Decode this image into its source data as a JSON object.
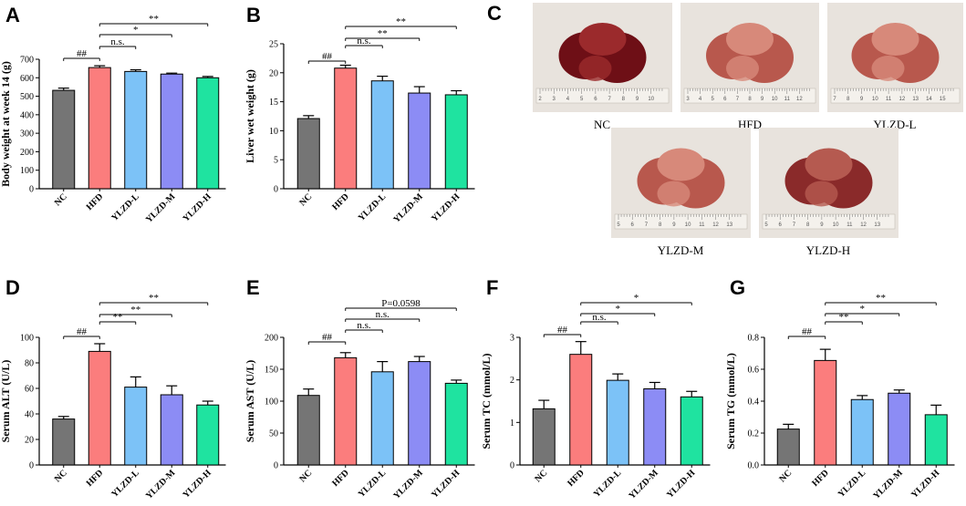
{
  "colors": {
    "NC": "#757575",
    "HFD": "#fb7d7d",
    "YLZD-L": "#7cc2f7",
    "YLZD-M": "#8c8cf5",
    "YLZD-H": "#1fe3a0",
    "axis": "#000000",
    "photo_bg": "#e8e3dd",
    "liver_dark": "#7a1218",
    "liver_light": "#c46a5c"
  },
  "panel_letters": [
    "A",
    "B",
    "C",
    "D",
    "E",
    "F",
    "G"
  ],
  "photos": [
    {
      "caption": "NC",
      "ruler_numbers": [
        "2",
        "3",
        "4",
        "5",
        "6",
        "7",
        "8",
        "9",
        "10"
      ],
      "tone": "dark"
    },
    {
      "caption": "HFD",
      "ruler_numbers": [
        "3",
        "4",
        "5",
        "6",
        "7",
        "8",
        "9",
        "10",
        "11",
        "12"
      ],
      "tone": "light"
    },
    {
      "caption": "YLZD-L",
      "ruler_numbers": [
        "7",
        "8",
        "9",
        "10",
        "11",
        "12",
        "13",
        "14",
        "15"
      ],
      "tone": "light"
    },
    {
      "caption": "YLZD-M",
      "ruler_numbers": [
        "5",
        "6",
        "7",
        "8",
        "9",
        "10",
        "11",
        "12",
        "13"
      ],
      "tone": "light"
    },
    {
      "caption": "YLZD-H",
      "ruler_numbers": [
        "5",
        "6",
        "7",
        "8",
        "9",
        "10",
        "11",
        "12",
        "13"
      ],
      "tone": "medium"
    }
  ],
  "chart_data": [
    {
      "panel": "A",
      "type": "bar",
      "categories": [
        "NC",
        "HFD",
        "YLZD-L",
        "YLZD-M",
        "YLZD-H"
      ],
      "values": [
        532,
        655,
        634,
        620,
        600
      ],
      "errors": [
        12,
        10,
        9,
        5,
        7
      ],
      "ylabel": "Body weight at week 14 (g)",
      "ylim": [
        0,
        700
      ],
      "yticks": [
        0,
        100,
        200,
        300,
        400,
        500,
        600,
        700
      ],
      "yticklabels": [
        "0",
        "100",
        "200",
        "300",
        "400",
        "500",
        "600",
        "700"
      ],
      "comparisons": [
        {
          "from": 0,
          "to": 1,
          "label": "##"
        },
        {
          "from": 1,
          "to": 2,
          "label": "n.s."
        },
        {
          "from": 1,
          "to": 3,
          "label": "*"
        },
        {
          "from": 1,
          "to": 4,
          "label": "**"
        }
      ]
    },
    {
      "panel": "B",
      "type": "bar",
      "categories": [
        "NC",
        "HFD",
        "YLZD-L",
        "YLZD-M",
        "YLZD-H"
      ],
      "values": [
        12.1,
        20.8,
        18.6,
        16.5,
        16.2
      ],
      "errors": [
        0.5,
        0.5,
        0.8,
        1.1,
        0.7
      ],
      "ylabel": "Liver wet weight (g)",
      "ylim": [
        0,
        25
      ],
      "yticks": [
        0,
        5,
        10,
        15,
        20,
        25
      ],
      "yticklabels": [
        "0",
        "5",
        "10",
        "15",
        "20",
        "25"
      ],
      "comparisons": [
        {
          "from": 0,
          "to": 1,
          "label": "##"
        },
        {
          "from": 1,
          "to": 2,
          "label": "n.s."
        },
        {
          "from": 1,
          "to": 3,
          "label": "**"
        },
        {
          "from": 1,
          "to": 4,
          "label": "**"
        }
      ]
    },
    {
      "panel": "D",
      "type": "bar",
      "categories": [
        "NC",
        "HFD",
        "YLZD-L",
        "YLZD-M",
        "YLZD-H"
      ],
      "values": [
        36,
        89,
        61,
        55,
        47
      ],
      "errors": [
        2,
        6,
        8,
        7,
        3
      ],
      "ylabel": "Serum ALT (U/L)",
      "ylim": [
        0,
        100
      ],
      "yticks": [
        0,
        20,
        40,
        60,
        80,
        100
      ],
      "yticklabels": [
        "0",
        "20",
        "40",
        "60",
        "80",
        "100"
      ],
      "comparisons": [
        {
          "from": 0,
          "to": 1,
          "label": "##"
        },
        {
          "from": 1,
          "to": 2,
          "label": "**"
        },
        {
          "from": 1,
          "to": 3,
          "label": "**"
        },
        {
          "from": 1,
          "to": 4,
          "label": "**"
        }
      ]
    },
    {
      "panel": "E",
      "type": "bar",
      "categories": [
        "NC",
        "HFD",
        "YLZD-L",
        "YLZD-M",
        "YLZD-H"
      ],
      "values": [
        109,
        168,
        146,
        162,
        128
      ],
      "errors": [
        10,
        8,
        16,
        8,
        5
      ],
      "ylabel": "Serum AST (U/L)",
      "ylim": [
        0,
        200
      ],
      "yticks": [
        0,
        50,
        100,
        150,
        200
      ],
      "yticklabels": [
        "0",
        "50",
        "100",
        "150",
        "200"
      ],
      "comparisons": [
        {
          "from": 0,
          "to": 1,
          "label": "##"
        },
        {
          "from": 1,
          "to": 2,
          "label": "n.s."
        },
        {
          "from": 1,
          "to": 3,
          "label": "n.s."
        },
        {
          "from": 1,
          "to": 4,
          "label": "P=0.0598"
        }
      ]
    },
    {
      "panel": "F",
      "type": "bar",
      "categories": [
        "NC",
        "HFD",
        "YLZD-L",
        "YLZD-M",
        "YLZD-H"
      ],
      "values": [
        1.32,
        2.6,
        1.99,
        1.79,
        1.6
      ],
      "errors": [
        0.2,
        0.3,
        0.15,
        0.15,
        0.13
      ],
      "ylabel": "Serum TC (mmol/L)",
      "ylim": [
        0,
        3
      ],
      "yticks": [
        0,
        1,
        2,
        3
      ],
      "yticklabels": [
        "0",
        "1",
        "2",
        "3"
      ],
      "comparisons": [
        {
          "from": 0,
          "to": 1,
          "label": "##"
        },
        {
          "from": 1,
          "to": 2,
          "label": "n.s."
        },
        {
          "from": 1,
          "to": 3,
          "label": "*"
        },
        {
          "from": 1,
          "to": 4,
          "label": "*"
        }
      ]
    },
    {
      "panel": "G",
      "type": "bar",
      "categories": [
        "NC",
        "HFD",
        "YLZD-L",
        "YLZD-M",
        "YLZD-H"
      ],
      "values": [
        0.225,
        0.655,
        0.41,
        0.45,
        0.315
      ],
      "errors": [
        0.03,
        0.07,
        0.025,
        0.02,
        0.06
      ],
      "ylabel": "Serum TG (mmol/L)",
      "ylim": [
        0,
        0.8
      ],
      "yticks": [
        0,
        0.2,
        0.4,
        0.6,
        0.8
      ],
      "yticklabels": [
        "0.0",
        "0.2",
        "0.4",
        "0.6",
        "0.8"
      ],
      "comparisons": [
        {
          "from": 0,
          "to": 1,
          "label": "##"
        },
        {
          "from": 1,
          "to": 2,
          "label": "**"
        },
        {
          "from": 1,
          "to": 3,
          "label": "*"
        },
        {
          "from": 1,
          "to": 4,
          "label": "**"
        }
      ]
    }
  ]
}
